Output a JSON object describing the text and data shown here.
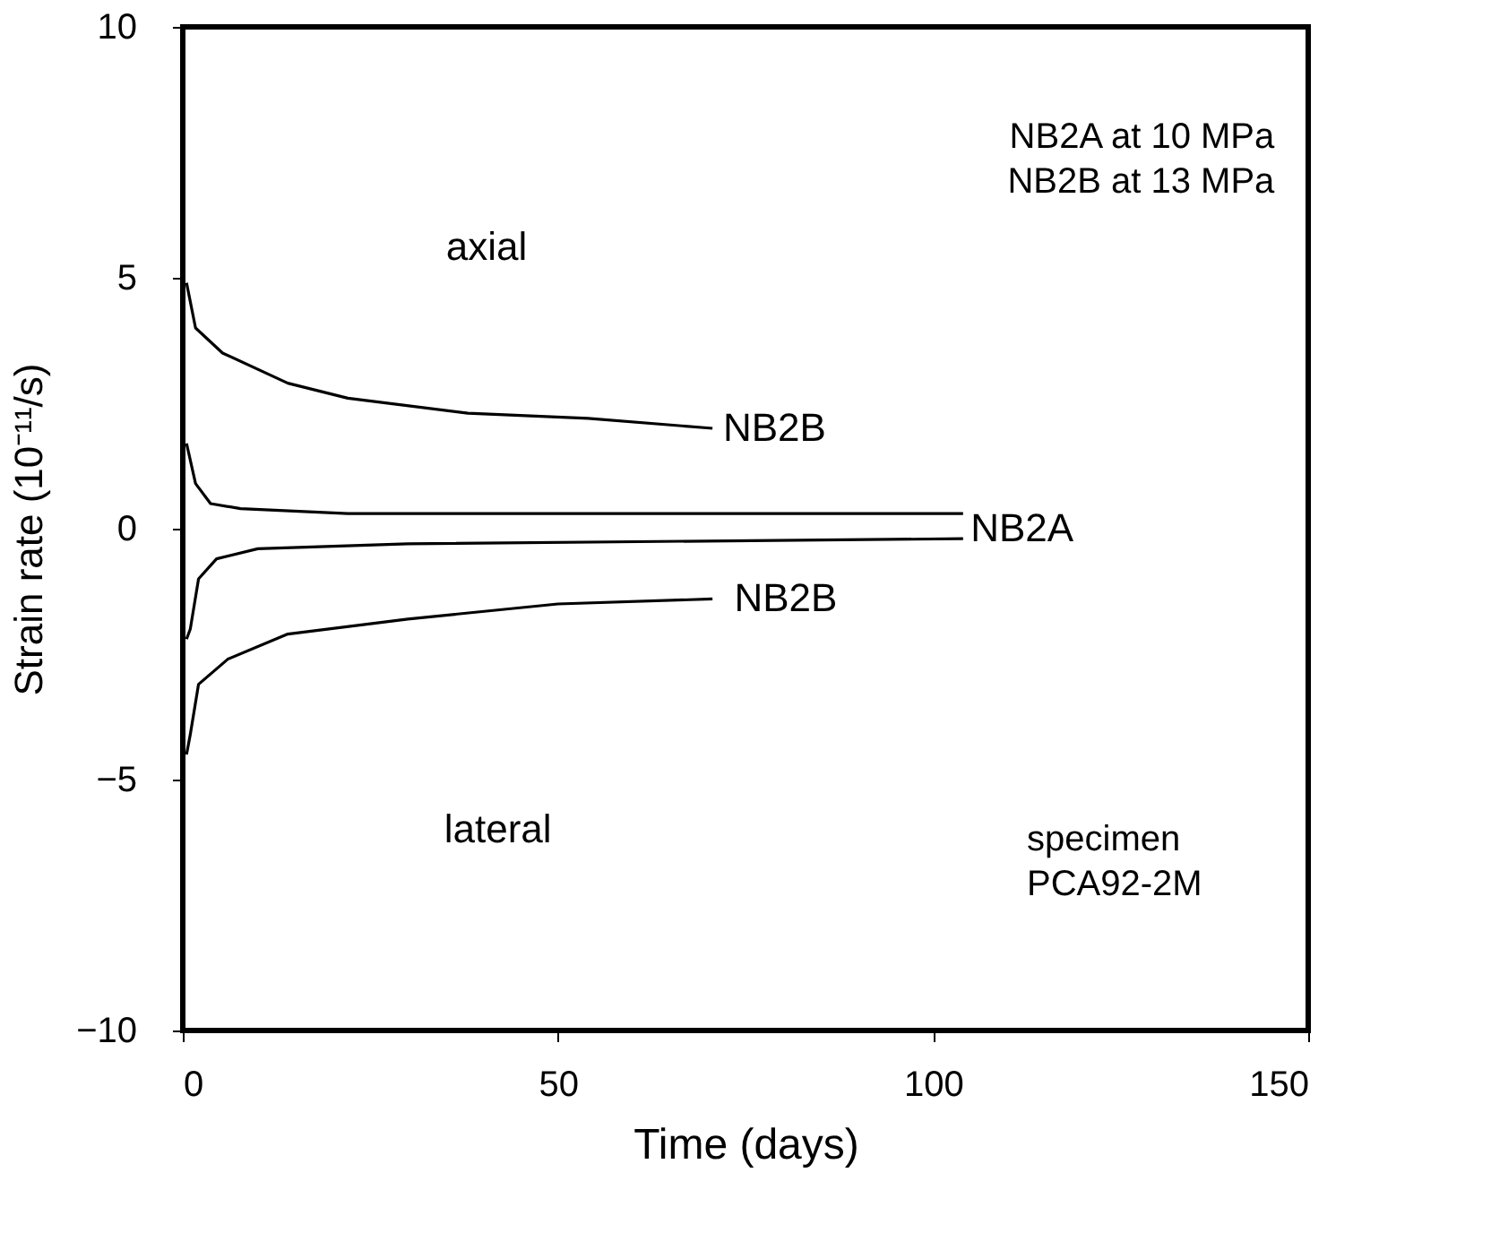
{
  "chart_data": {
    "type": "line",
    "xlabel": "Time (days)",
    "ylabel": "Strain rate (10⁻¹¹/s)",
    "xlim": [
      0,
      150
    ],
    "ylim": [
      -10,
      10
    ],
    "xticks": [
      0,
      50,
      100,
      150
    ],
    "yticks": [
      -10,
      -5,
      0,
      5,
      10
    ],
    "grid": false,
    "marker": "none",
    "line_style": "solid",
    "series": [
      {
        "color": "#000000",
        "x": [
          0.5,
          1.7,
          5.3,
          14,
          22,
          38,
          54,
          70.6
        ],
        "values": [
          4.9,
          4.0,
          3.5,
          2.9,
          2.6,
          2.3,
          2.2,
          2.0
        ]
      },
      {
        "color": "#000000",
        "x": [
          0.5,
          1.7,
          3.7,
          7.7,
          22,
          60,
          104
        ],
        "values": [
          1.7,
          0.9,
          0.5,
          0.4,
          0.3,
          0.3,
          0.3
        ]
      },
      {
        "color": "#000000",
        "x": [
          0.5,
          1,
          2.1,
          4.5,
          10,
          30,
          104
        ],
        "values": [
          -2.2,
          -2.0,
          -1.0,
          -0.6,
          -0.4,
          -0.3,
          -0.2
        ]
      },
      {
        "color": "#000000",
        "x": [
          0.5,
          1,
          2.1,
          6,
          14,
          30,
          50,
          70.6
        ],
        "values": [
          -4.5,
          -4.1,
          -3.1,
          -2.6,
          -2.1,
          -1.8,
          -1.5,
          -1.4
        ]
      }
    ],
    "annotations": [
      "NB2B",
      "NB2A",
      "NB2B",
      "axial",
      "lateral",
      "NB2A at 10 MPa\nNB2B at 13 MPa",
      "specimen\nPCA92-2M"
    ]
  }
}
